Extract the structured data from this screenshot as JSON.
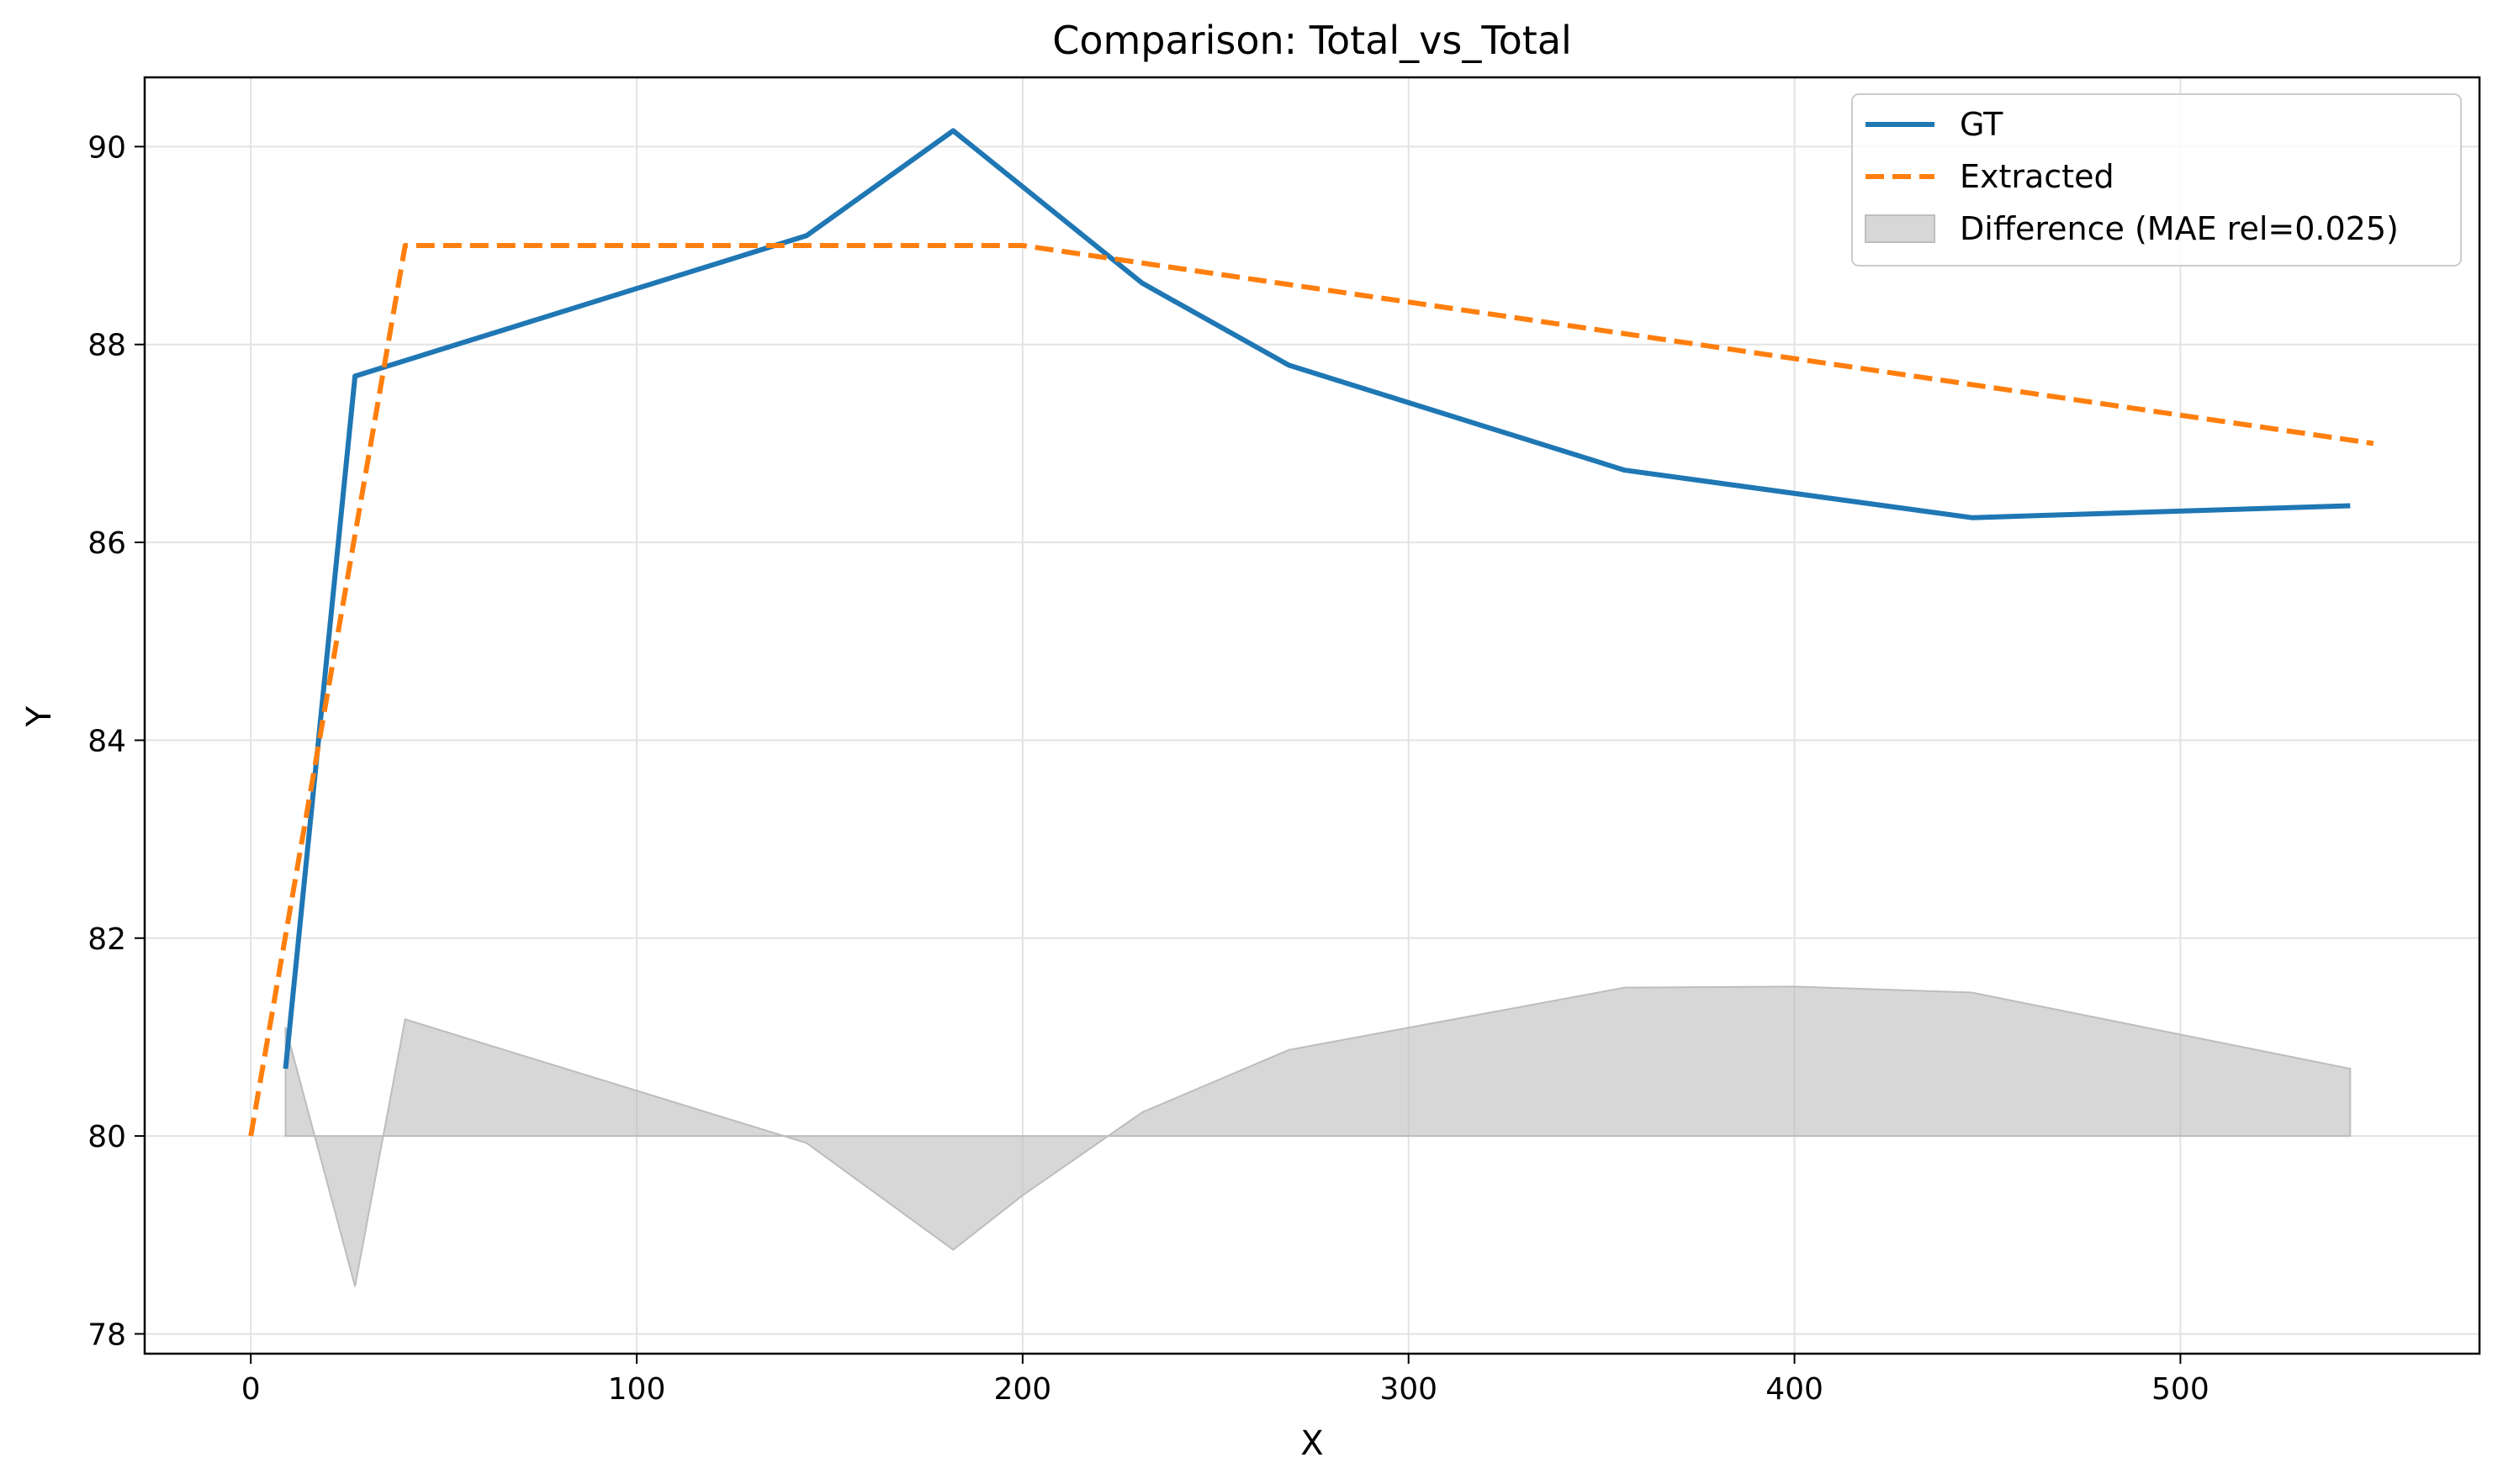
{
  "chart_data": {
    "type": "line",
    "title": "Comparison: Total_vs_Total",
    "xlabel": "X",
    "ylabel": "Y",
    "xlim": [
      -27.5,
      577.5
    ],
    "ylim": [
      77.8,
      90.7
    ],
    "xticks": [
      0,
      100,
      200,
      300,
      400,
      500
    ],
    "yticks": [
      78,
      80,
      82,
      84,
      86,
      88,
      90
    ],
    "grid": true,
    "legend_position": "top-right",
    "series": [
      {
        "name": "GT",
        "kind": "line",
        "color": "#1f77b4",
        "style": "solid",
        "x": [
          9,
          27,
          144,
          182,
          231,
          269,
          356,
          446,
          544
        ],
        "y": [
          80.68,
          87.68,
          89.1,
          90.16,
          88.62,
          87.79,
          86.73,
          86.25,
          86.37
        ]
      },
      {
        "name": "Extracted",
        "kind": "line",
        "color": "#ff7f0e",
        "style": "dashed",
        "x": [
          0,
          40,
          200,
          550
        ],
        "y": [
          80.0,
          89.0,
          89.0,
          87.0
        ]
      },
      {
        "name": "Difference (MAE rel=0.025)",
        "kind": "area",
        "color": "#bdbdbd",
        "baseline": 80,
        "x": [
          9,
          9,
          27,
          40,
          144,
          182,
          200,
          231,
          269,
          356,
          400,
          446,
          544,
          544
        ],
        "y": [
          80.0,
          81.1,
          78.48,
          81.18,
          79.93,
          78.85,
          79.4,
          80.24,
          80.87,
          81.5,
          81.51,
          81.45,
          80.68,
          80.0
        ]
      }
    ]
  }
}
